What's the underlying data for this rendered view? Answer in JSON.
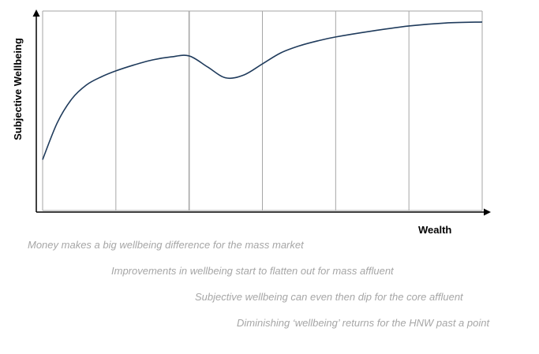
{
  "chart_data": {
    "type": "line",
    "title": "",
    "xlabel": "Wealth",
    "ylabel": "Subjective Wellbeing",
    "xlim": [
      0,
      6
    ],
    "ylim": [
      0,
      100
    ],
    "x_ticks_shown": false,
    "y_ticks_shown": false,
    "grid": {
      "vertical": true,
      "horizontal": false,
      "vertical_lines": [
        0,
        1,
        2,
        3,
        4,
        5,
        6
      ],
      "box": true
    },
    "legend": "none",
    "series": [
      {
        "x": [
          0,
          0.2,
          0.4,
          0.6,
          0.8,
          1.0,
          1.25,
          1.5,
          1.75,
          2.0,
          2.25,
          2.5,
          2.75,
          3.0,
          3.25,
          3.5,
          3.75,
          4.0,
          4.5,
          5.0,
          5.5,
          6.0
        ],
        "y": [
          25.5,
          44,
          56,
          63,
          67,
          70,
          73,
          75.5,
          77,
          77.5,
          72,
          66.5,
          68,
          73.5,
          79,
          82.5,
          85,
          87,
          90,
          92.5,
          94,
          94.5
        ],
        "color": "#1f3b5c"
      }
    ],
    "annotations": [
      "Money makes a big wellbeing difference for the mass market",
      "Improvements in wellbeing start to flatten out for mass affluent",
      "Subjective wellbeing can even then dip for the core affluent",
      "Diminishing ‘wellbeing’ returns for the HNW past a point"
    ]
  },
  "colors": {
    "line": "#1f3b5c",
    "grid": "#a6a6a6",
    "axis": "#000000",
    "annotation_text": "#a6a6a6"
  }
}
